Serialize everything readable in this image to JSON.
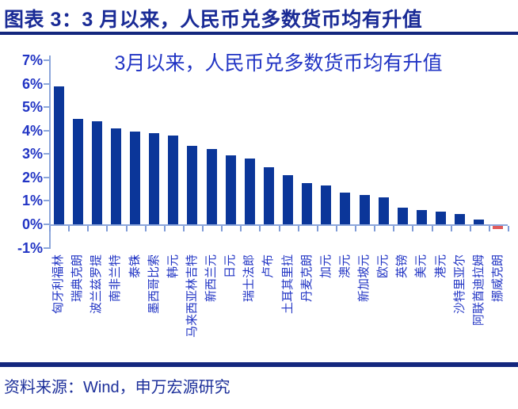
{
  "header": {
    "caption": "图表 3：3 月以来，人民币兑多数货币均有升值"
  },
  "footer": {
    "source": "资料来源：Wind，申万宏源研究"
  },
  "chart_data": {
    "type": "bar",
    "title": "3月以来，人民币兑多数货币均有升值",
    "xlabel": "",
    "ylabel": "",
    "unit": "%",
    "ylim": [
      -1,
      7
    ],
    "grid": false,
    "legend": "none",
    "ytick_values": [
      7,
      6,
      5,
      4,
      3,
      2,
      1,
      0,
      -1
    ],
    "ytick_labels": [
      "7%",
      "6%",
      "5%",
      "4%",
      "3%",
      "2%",
      "1%",
      "0%",
      "-1%"
    ],
    "categories": [
      "匈牙利福林",
      "瑞典克朗",
      "波兰兹罗提",
      "南非兰特",
      "泰铢",
      "墨西哥比索",
      "韩元",
      "马来西亚林吉特",
      "新西兰元",
      "日元",
      "瑞士法郎",
      "卢布",
      "土耳其里拉",
      "丹麦克朗",
      "加元",
      "澳元",
      "新加坡元",
      "欧元",
      "英镑",
      "美元",
      "港元",
      "沙特里亚尔",
      "阿联酋迪拉姆",
      "挪威克朗"
    ],
    "values": [
      5.9,
      4.5,
      4.4,
      4.1,
      3.95,
      3.9,
      3.8,
      3.35,
      3.2,
      2.95,
      2.8,
      2.45,
      2.1,
      1.75,
      1.65,
      1.35,
      1.25,
      1.15,
      0.7,
      0.6,
      0.55,
      0.45,
      0.2,
      -0.15
    ],
    "colors": {
      "bar_positive": "#0b3699",
      "bar_negative": "#e05a5a",
      "axis_line": "#8ca6db",
      "tick": "#7f9bd7",
      "title_text": "#2134c4",
      "axis_text": "#2134c4",
      "caption_text": "#1a2b96",
      "rule": "#14277e",
      "source_text": "#1c2f9a"
    }
  }
}
